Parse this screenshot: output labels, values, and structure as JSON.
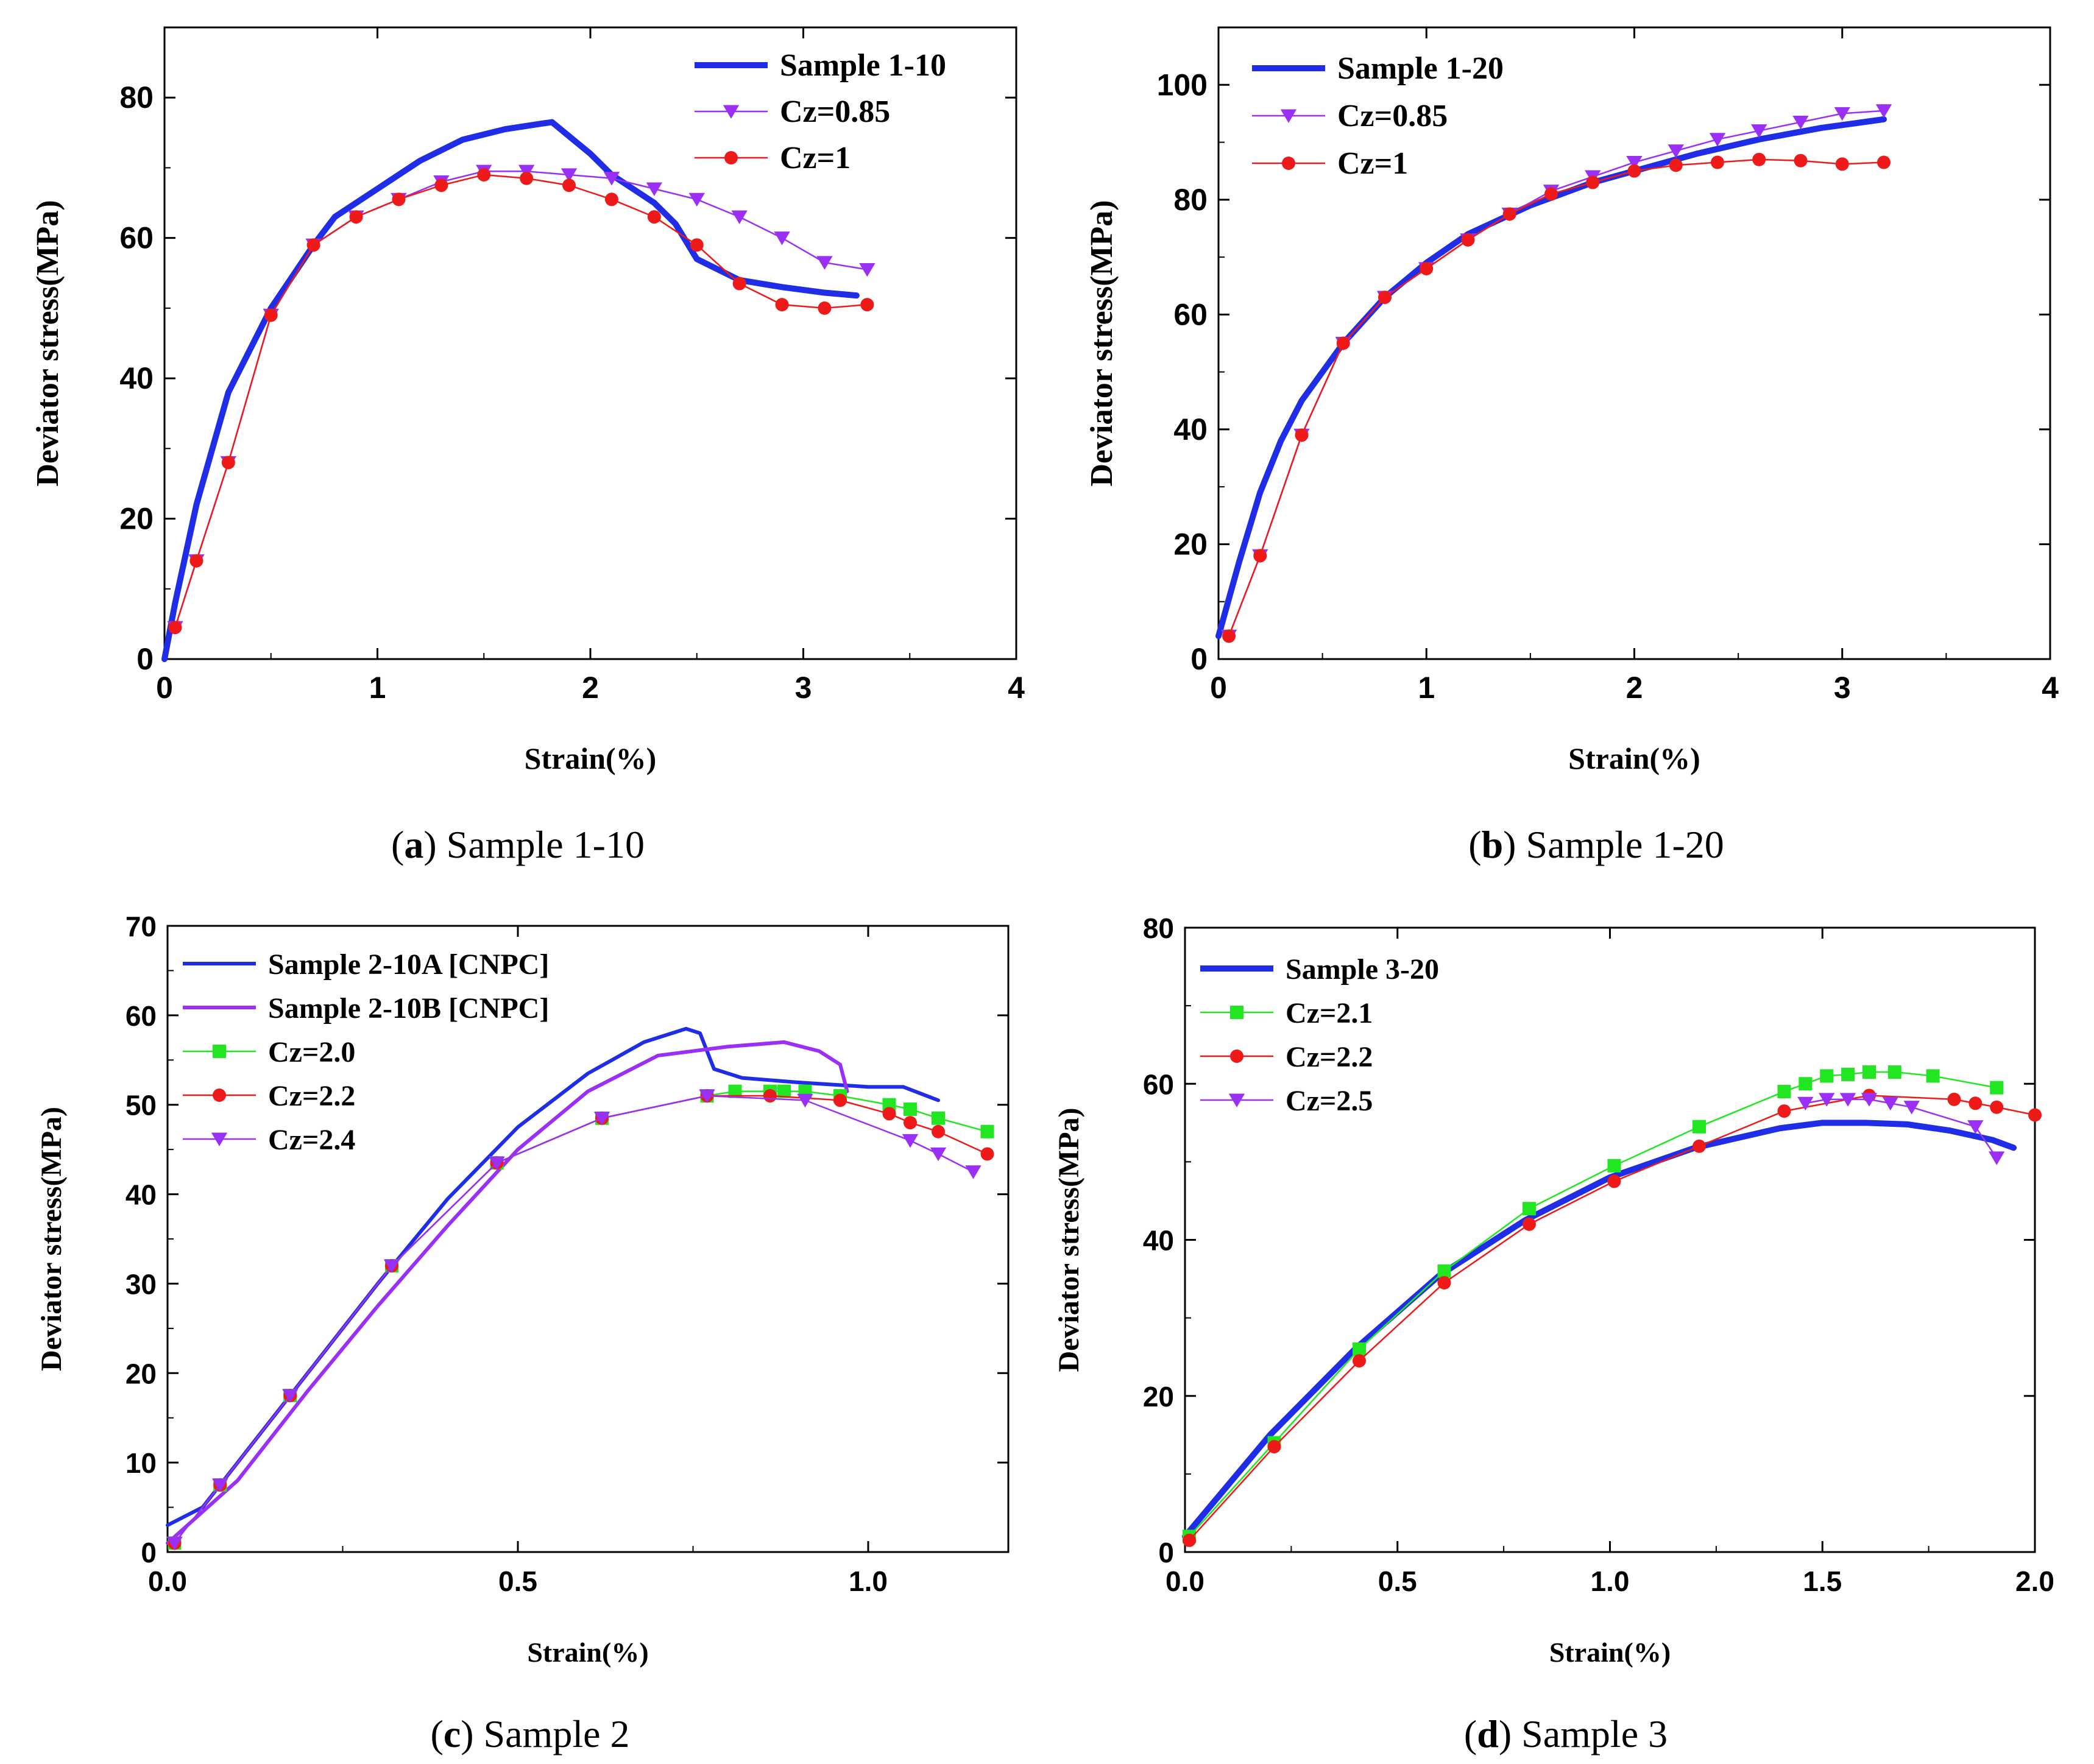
{
  "figure": {
    "captions": [
      {
        "letter": "a",
        "text": " Sample 1-10"
      },
      {
        "letter": "b",
        "text": " Sample 1-20"
      },
      {
        "letter": "c",
        "text": " Sample 2"
      },
      {
        "letter": "d",
        "text": " Sample 3"
      }
    ]
  },
  "chart_data": [
    {
      "type": "line",
      "panel": "a",
      "xlabel": "Strain(%)",
      "ylabel": "Deviator stress(MPa)",
      "xlim": [
        0,
        4
      ],
      "ylim": [
        0,
        90
      ],
      "xticks": [
        0,
        1,
        2,
        3,
        4
      ],
      "xtick_labels": [
        "0",
        "1",
        "2",
        "3",
        "4"
      ],
      "yticks": [
        0,
        20,
        40,
        60,
        80
      ],
      "ytick_labels": [
        "0",
        "20",
        "40",
        "60",
        "80"
      ],
      "legend_position": "top-right",
      "series": [
        {
          "name": "Sample 1-10",
          "color": "#1f2ee6",
          "marker": "none",
          "width": "thick",
          "x": [
            0,
            0.05,
            0.15,
            0.3,
            0.5,
            0.7,
            0.8,
            1.0,
            1.2,
            1.4,
            1.6,
            1.75,
            1.82,
            1.9,
            2.0,
            2.1,
            2.2,
            2.3,
            2.4,
            2.5,
            2.7,
            2.9,
            3.1,
            3.25
          ],
          "y": [
            0,
            8,
            22,
            38,
            50,
            59,
            63,
            67,
            71,
            74,
            75.5,
            76.2,
            76.5,
            74.5,
            72,
            69,
            67,
            65,
            62,
            57,
            54,
            53,
            52.2,
            51.8
          ]
        },
        {
          "name": "Cz=0.85",
          "color": "#9a2ff5",
          "marker": "triangle-down",
          "width": "thin",
          "x": [
            0.05,
            0.15,
            0.3,
            0.5,
            0.7,
            0.9,
            1.1,
            1.3,
            1.5,
            1.7,
            1.9,
            2.1,
            2.3,
            2.5,
            2.7,
            2.9,
            3.1,
            3.3
          ],
          "y": [
            4.5,
            14,
            28,
            49,
            59,
            63,
            65.5,
            68,
            69.5,
            69.5,
            69,
            68.5,
            67,
            65.5,
            63,
            60,
            56.5,
            55.5
          ]
        },
        {
          "name": "Cz=1",
          "color": "#ee1a1a",
          "marker": "circle",
          "width": "thin",
          "x": [
            0.05,
            0.15,
            0.3,
            0.5,
            0.7,
            0.9,
            1.1,
            1.3,
            1.5,
            1.7,
            1.9,
            2.1,
            2.3,
            2.5,
            2.7,
            2.9,
            3.1,
            3.3
          ],
          "y": [
            4.5,
            14,
            28,
            49,
            59,
            63,
            65.5,
            67.5,
            69,
            68.5,
            67.5,
            65.5,
            63,
            59,
            53.5,
            50.5,
            50,
            50.5
          ]
        }
      ]
    },
    {
      "type": "line",
      "panel": "b",
      "xlabel": "Strain(%)",
      "ylabel": "Deviator stress(MPa)",
      "xlim": [
        0,
        4
      ],
      "ylim": [
        0,
        110
      ],
      "xticks": [
        0,
        1,
        2,
        3,
        4
      ],
      "xtick_labels": [
        "0",
        "1",
        "2",
        "3",
        "4"
      ],
      "yticks": [
        0,
        20,
        40,
        60,
        80,
        100
      ],
      "ytick_labels": [
        "0",
        "20",
        "40",
        "60",
        "80",
        "100"
      ],
      "legend_position": "top-left",
      "series": [
        {
          "name": "Sample 1-20",
          "color": "#1f2ee6",
          "marker": "none",
          "width": "thick",
          "x": [
            0,
            0.1,
            0.2,
            0.3,
            0.4,
            0.6,
            0.8,
            1.0,
            1.2,
            1.5,
            1.8,
            2.0,
            2.3,
            2.6,
            2.9,
            3.2
          ],
          "y": [
            4,
            17,
            29,
            38,
            45,
            55,
            63,
            69,
            74,
            79,
            83,
            85,
            88,
            90.5,
            92.5,
            94
          ]
        },
        {
          "name": "Cz=0.85",
          "color": "#9a2ff5",
          "marker": "triangle-down",
          "width": "thin",
          "x": [
            0.05,
            0.2,
            0.4,
            0.6,
            0.8,
            1.0,
            1.2,
            1.4,
            1.6,
            1.8,
            2.0,
            2.2,
            2.4,
            2.6,
            2.8,
            3.0,
            3.2
          ],
          "y": [
            4,
            18,
            39,
            55,
            63,
            68,
            73,
            77.5,
            81.5,
            84,
            86.5,
            88.5,
            90.5,
            92,
            93.5,
            95,
            95.5
          ]
        },
        {
          "name": "Cz=1",
          "color": "#ee1a1a",
          "marker": "circle",
          "width": "thin",
          "x": [
            0.05,
            0.2,
            0.4,
            0.6,
            0.8,
            1.0,
            1.2,
            1.4,
            1.6,
            1.8,
            2.0,
            2.2,
            2.4,
            2.6,
            2.8,
            3.0,
            3.2
          ],
          "y": [
            4,
            18,
            39,
            55,
            63,
            68,
            73,
            77.5,
            81,
            83,
            85,
            86,
            86.5,
            87,
            86.8,
            86.2,
            86.5
          ]
        }
      ]
    },
    {
      "type": "line",
      "panel": "c",
      "xlabel": "Strain(%)",
      "ylabel": "Deviator stress(MPa)",
      "xlim": [
        0,
        1.2
      ],
      "ylim": [
        0,
        70
      ],
      "xticks": [
        0,
        0.5,
        1.0
      ],
      "xtick_labels": [
        "0.0",
        "0.5",
        "1.0"
      ],
      "yticks": [
        0,
        10,
        20,
        30,
        40,
        50,
        60,
        70
      ],
      "ytick_labels": [
        "0",
        "10",
        "20",
        "30",
        "40",
        "50",
        "60",
        "70"
      ],
      "legend_position": "top-left",
      "series": [
        {
          "name": "Sample 2-10A [CNPC]",
          "color": "#1f2ee6",
          "marker": "none",
          "width": "medium",
          "x": [
            0,
            0.05,
            0.1,
            0.2,
            0.3,
            0.4,
            0.5,
            0.6,
            0.68,
            0.74,
            0.76,
            0.78,
            0.82,
            0.9,
            1.0,
            1.05,
            1.1
          ],
          "y": [
            3,
            5,
            10,
            20,
            30,
            39.5,
            47.5,
            53.5,
            57,
            58.5,
            58,
            54,
            53,
            52.5,
            52,
            52,
            50.5
          ]
        },
        {
          "name": "Sample 2-10B [CNPC]",
          "color": "#9a2ff5",
          "marker": "none",
          "width": "medium",
          "x": [
            0,
            0.1,
            0.2,
            0.3,
            0.4,
            0.5,
            0.6,
            0.7,
            0.8,
            0.88,
            0.93,
            0.96,
            0.97
          ],
          "y": [
            1,
            8,
            18,
            27.5,
            36.5,
            45,
            51.5,
            55.5,
            56.5,
            57,
            56,
            54.5,
            51.5
          ]
        },
        {
          "name": "Cz=2.0",
          "color": "#22e622",
          "marker": "square",
          "width": "thin",
          "x": [
            0.01,
            0.075,
            0.175,
            0.32,
            0.47,
            0.62,
            0.77,
            0.81,
            0.86,
            0.88,
            0.91,
            0.96,
            1.03,
            1.06,
            1.1,
            1.17
          ],
          "y": [
            1,
            7.5,
            17.5,
            32,
            43.5,
            48.5,
            51,
            51.5,
            51.5,
            51.5,
            51.5,
            51,
            50,
            49.5,
            48.5,
            47
          ]
        },
        {
          "name": "Cz=2.2",
          "color": "#ee1a1a",
          "marker": "circle",
          "width": "thin",
          "x": [
            0.01,
            0.075,
            0.175,
            0.32,
            0.47,
            0.62,
            0.77,
            0.86,
            0.96,
            1.03,
            1.06,
            1.1,
            1.17
          ],
          "y": [
            1,
            7.5,
            17.5,
            32,
            43.5,
            48.5,
            51,
            51,
            50.5,
            49,
            48,
            47,
            44.5
          ]
        },
        {
          "name": "Cz=2.4",
          "color": "#9a2ff5",
          "marker": "triangle-down",
          "width": "thin",
          "x": [
            0.01,
            0.075,
            0.175,
            0.32,
            0.47,
            0.62,
            0.77,
            0.91,
            1.06,
            1.1,
            1.15
          ],
          "y": [
            1,
            7.5,
            17.5,
            32,
            43.5,
            48.5,
            51,
            50.5,
            46,
            44.5,
            42.5
          ]
        }
      ]
    },
    {
      "type": "line",
      "panel": "d",
      "xlabel": "Strain(%)",
      "ylabel": "Deviator stress(MPa)",
      "xlim": [
        0,
        2.0
      ],
      "ylim": [
        0,
        80
      ],
      "xticks": [
        0,
        0.5,
        1.0,
        1.5,
        2.0
      ],
      "xtick_labels": [
        "0.0",
        "0.5",
        "1.0",
        "1.5",
        "2.0"
      ],
      "yticks": [
        0,
        20,
        40,
        60,
        80
      ],
      "ytick_labels": [
        "0",
        "20",
        "40",
        "60",
        "80"
      ],
      "legend_position": "top-left",
      "series": [
        {
          "name": "Sample 3-20",
          "color": "#1f2ee6",
          "marker": "none",
          "width": "thick",
          "x": [
            0,
            0.2,
            0.4,
            0.6,
            0.8,
            1.0,
            1.2,
            1.4,
            1.5,
            1.6,
            1.7,
            1.8,
            1.9,
            1.95
          ],
          "y": [
            2,
            15,
            26,
            35.5,
            42.5,
            48,
            51.8,
            54.3,
            55,
            55,
            54.8,
            54,
            52.8,
            51.8
          ]
        },
        {
          "name": "Cz=2.1",
          "color": "#22e622",
          "marker": "square",
          "width": "thin",
          "x": [
            0.01,
            0.21,
            0.41,
            0.61,
            0.81,
            1.01,
            1.21,
            1.41,
            1.46,
            1.51,
            1.56,
            1.61,
            1.67,
            1.76,
            1.91
          ],
          "y": [
            2,
            14,
            26,
            36,
            44,
            49.5,
            54.5,
            59,
            60,
            61,
            61.2,
            61.5,
            61.5,
            61,
            59.5
          ]
        },
        {
          "name": "Cz=2.2",
          "color": "#ee1a1a",
          "marker": "circle",
          "width": "thin",
          "x": [
            0.01,
            0.21,
            0.41,
            0.61,
            0.81,
            1.01,
            1.21,
            1.41,
            1.61,
            1.81,
            1.86,
            1.91,
            2.0
          ],
          "y": [
            1.5,
            13.5,
            24.5,
            34.5,
            42,
            47.5,
            52,
            56.5,
            58.5,
            58,
            57.5,
            57,
            56
          ]
        },
        {
          "name": "Cz=2.5",
          "color": "#9a2ff5",
          "marker": "triangle-down",
          "width": "thin",
          "x": [
            1.46,
            1.51,
            1.56,
            1.61,
            1.66,
            1.71,
            1.86,
            1.91
          ],
          "y": [
            57.5,
            58,
            58,
            58,
            57.5,
            57,
            54.5,
            50.5
          ]
        }
      ]
    }
  ]
}
